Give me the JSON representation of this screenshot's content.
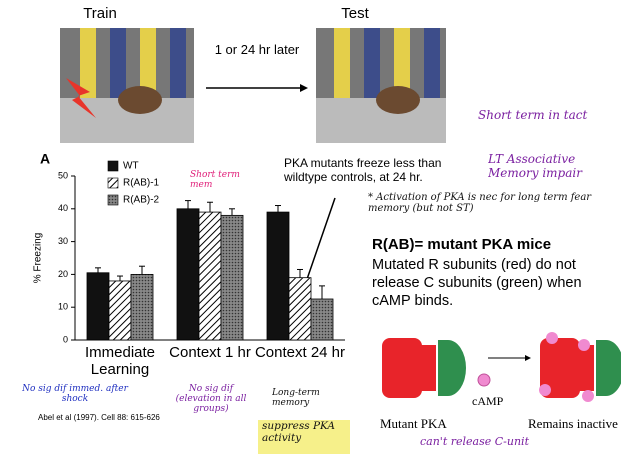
{
  "train_label": "Train",
  "test_label": "Test",
  "interval_label": "1 or 24 hr later",
  "chart_data": {
    "type": "bar",
    "panel_label": "A",
    "ylabel": "% Freezing",
    "categories": [
      "Immediate Learning",
      "Context 1 hr",
      "Context 24 hr"
    ],
    "series": [
      {
        "name": "WT",
        "color": "#111111",
        "values": [
          20.5,
          40,
          39
        ],
        "errors": [
          1.5,
          2.5,
          2
        ]
      },
      {
        "name": "R(AB)-1",
        "color": "hatch",
        "values": [
          18,
          39,
          19
        ],
        "errors": [
          1.5,
          3,
          2.5
        ]
      },
      {
        "name": "R(AB)-2",
        "color": "dots",
        "values": [
          20,
          38,
          12.5
        ],
        "errors": [
          2.5,
          2,
          4
        ]
      }
    ],
    "ylim": [
      0,
      50
    ],
    "yticks": [
      0,
      10,
      20,
      30,
      40,
      50
    ]
  },
  "citation": "Abel et al (1997). Cell 88: 615-626",
  "callout": "PKA mutants freeze less than wildtype controls, at 24 hr.",
  "mutant_title": "R(AB)= mutant PKA mice",
  "mutant_text": "Mutated R subunits (red) do not release C subunits (green) when cAMP binds.",
  "diagram": {
    "camp": "cAMP",
    "left": "Mutant PKA",
    "right": "Remains inactive"
  },
  "notes": {
    "st_intact": "Short term in tact",
    "lt_impair": "LT Associative Memory impair",
    "activation": "* Activation of PKA is nec for long term fear memory (but not ST)",
    "st_mem": "Short term mem",
    "nosig1": "No sig dif immed. after shock",
    "nosig2": "No sig dif (elevation in all groups)",
    "lt_mem": "Long-term memory",
    "suppress": "suppress PKA activity",
    "cant": "can't release C-unit"
  }
}
